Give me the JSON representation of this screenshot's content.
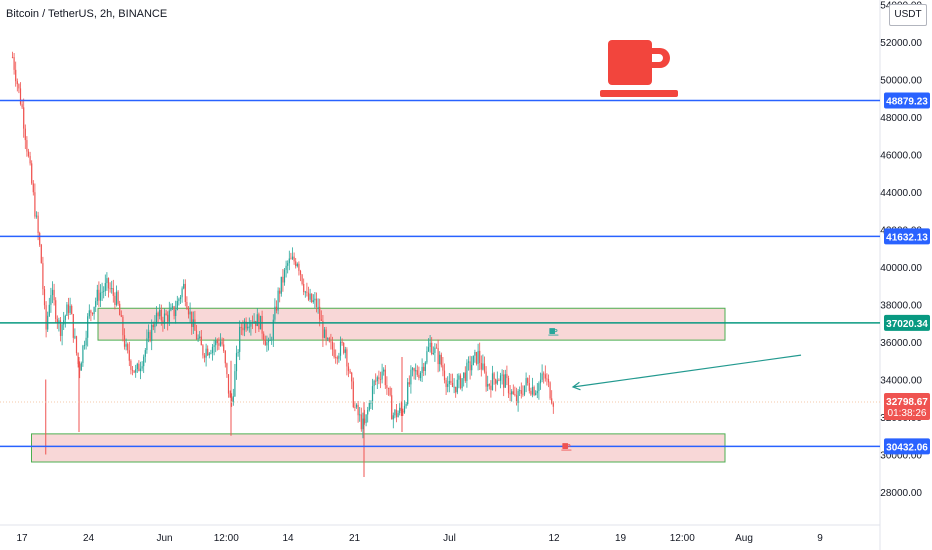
{
  "header": {
    "title": "Bitcoin / TetherUS, 2h, BINANCE",
    "currency": "USDT"
  },
  "colors": {
    "up": "#26a69a",
    "down": "#ef5350",
    "level_blue": "#2962ff",
    "level_green": "#089981",
    "zone_fill": "#f8d7d7",
    "zone_border": "#4caf50",
    "arrow": "#22998f",
    "cup": "#f2453d"
  },
  "chart_data": {
    "type": "candlestick",
    "y_ticks": [
      "54000.00",
      "52000.00",
      "50000.00",
      "48000.00",
      "46000.00",
      "44000.00",
      "42000.00",
      "40000.00",
      "38000.00",
      "36000.00",
      "34000.00",
      "32000.00",
      "30000.00",
      "28000.00"
    ],
    "y_tick_values": [
      54000,
      52000,
      50000,
      48000,
      46000,
      44000,
      42000,
      40000,
      38000,
      36000,
      34000,
      32000,
      30000,
      28000
    ],
    "ylim": [
      26800,
      54300
    ],
    "x_ticks": [
      "17",
      "24",
      "Jun",
      "12:00",
      "14",
      "21",
      "Jul",
      "12",
      "19",
      "12:00",
      "Aug",
      "9"
    ],
    "x_tick_dates": [
      "2021-05-17",
      "2021-05-24",
      "2021-06-01",
      "2021-06-07 12:00",
      "2021-06-14",
      "2021-06-21",
      "2021-07-01",
      "2021-07-12",
      "2021-07-19",
      "2021-07-25 12:00",
      "2021-08-01",
      "2021-08-09"
    ],
    "horizontal_levels": [
      {
        "price": 48879.23,
        "label": "48879.23",
        "color": "blue"
      },
      {
        "price": 41632.13,
        "label": "41632.13",
        "color": "blue"
      },
      {
        "price": 37020.34,
        "label": "37020.34",
        "color": "green"
      },
      {
        "price": 30432.06,
        "label": "30432.06",
        "color": "blue"
      }
    ],
    "zones": [
      {
        "from": "2021-05-25",
        "to": "2021-07-30",
        "low": 36100,
        "high": 37800
      },
      {
        "from": "2021-05-18",
        "to": "2021-07-30",
        "low": 29600,
        "high": 31100
      }
    ],
    "current_price": {
      "label": "32798.67",
      "countdown": "01:38:26",
      "color": "red"
    },
    "price_path": [
      [
        "2021-05-16",
        51200
      ],
      [
        "2021-05-17",
        48500
      ],
      [
        "2021-05-18",
        44500
      ],
      [
        "2021-05-19",
        40500
      ],
      [
        "2021-05-19 12:00",
        36500
      ],
      [
        "2021-05-20",
        38800
      ],
      [
        "2021-05-21",
        36700
      ],
      [
        "2021-05-22",
        38000
      ],
      [
        "2021-05-23",
        34500
      ],
      [
        "2021-05-24",
        37400
      ],
      [
        "2021-05-25",
        38500
      ],
      [
        "2021-05-26",
        39000
      ],
      [
        "2021-05-27",
        38200
      ],
      [
        "2021-05-28",
        35400
      ],
      [
        "2021-05-29",
        34300
      ],
      [
        "2021-05-30",
        35600
      ],
      [
        "2021-05-31",
        37300
      ],
      [
        "2021-06-01",
        37300
      ],
      [
        "2021-06-02",
        37600
      ],
      [
        "2021-06-03",
        39000
      ],
      [
        "2021-06-04",
        36800
      ],
      [
        "2021-06-05",
        35500
      ],
      [
        "2021-06-06",
        35800
      ],
      [
        "2021-06-07",
        36100
      ],
      [
        "2021-06-08",
        32500
      ],
      [
        "2021-06-09",
        36800
      ],
      [
        "2021-06-10",
        37300
      ],
      [
        "2021-06-11",
        37100
      ],
      [
        "2021-06-12",
        35600
      ],
      [
        "2021-06-13",
        38600
      ],
      [
        "2021-06-14",
        40200
      ],
      [
        "2021-06-15",
        40400
      ],
      [
        "2021-06-16",
        38300
      ],
      [
        "2021-06-17",
        38000
      ],
      [
        "2021-06-18",
        35900
      ],
      [
        "2021-06-19",
        35500
      ],
      [
        "2021-06-20",
        35800
      ],
      [
        "2021-06-21",
        32500
      ],
      [
        "2021-06-22",
        31400
      ],
      [
        "2021-06-23",
        33700
      ],
      [
        "2021-06-24",
        34600
      ],
      [
        "2021-06-25",
        32100
      ],
      [
        "2021-06-26",
        32300
      ],
      [
        "2021-06-27",
        34200
      ],
      [
        "2021-06-28",
        34500
      ],
      [
        "2021-06-29",
        35900
      ],
      [
        "2021-06-30",
        35000
      ],
      [
        "2021-07-01",
        33500
      ],
      [
        "2021-07-02",
        33800
      ],
      [
        "2021-07-03",
        34600
      ],
      [
        "2021-07-04",
        35300
      ],
      [
        "2021-07-05",
        33700
      ],
      [
        "2021-07-06",
        34200
      ],
      [
        "2021-07-07",
        33800
      ],
      [
        "2021-07-08",
        32800
      ],
      [
        "2021-07-09",
        33800
      ],
      [
        "2021-07-10",
        33500
      ],
      [
        "2021-07-11",
        34200
      ],
      [
        "2021-07-12",
        32798
      ]
    ],
    "lows_spikes": [
      [
        "2021-05-19 12:00",
        30000
      ],
      [
        "2021-05-23",
        31200
      ],
      [
        "2021-06-08",
        31000
      ],
      [
        "2021-06-22",
        28800
      ],
      [
        "2021-06-26",
        31200
      ]
    ],
    "trend_arrow": {
      "from_date": "2021-08-07",
      "from_price": 35300,
      "to_date": "2021-07-14",
      "to_price": 33600
    }
  }
}
